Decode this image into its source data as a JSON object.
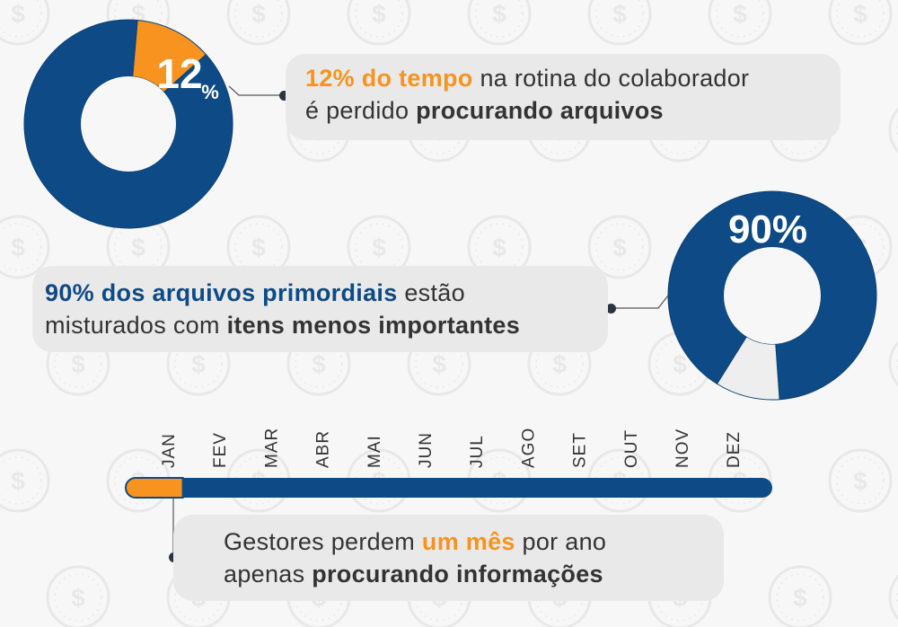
{
  "colors": {
    "navy": "#0e4a86",
    "orange": "#f7931e",
    "light_slice": "#eeeeee",
    "callout_bg": "#e9e9e9",
    "text": "#333333",
    "background": "#f7f7f7"
  },
  "background_icon": "compass-dollar-watermark-icon",
  "chart_data": [
    {
      "type": "pie",
      "variant": "donut",
      "slices": [
        {
          "label": "12%",
          "value": 12,
          "color": "#f7931e"
        },
        {
          "value": 88,
          "color": "#0e4a86"
        }
      ],
      "label_main": "12",
      "label_unit": "%"
    },
    {
      "type": "pie",
      "variant": "donut",
      "slices": [
        {
          "label": "90%",
          "value": 90,
          "color": "#0e4a86"
        },
        {
          "value": 10,
          "color": "#eeeeee"
        }
      ],
      "label_main": "90%"
    },
    {
      "type": "bar",
      "variant": "timeline-progress",
      "categories": [
        "JAN",
        "FEV",
        "MAR",
        "ABR",
        "MAI",
        "JUN",
        "JUL",
        "AGO",
        "SET",
        "OUT",
        "NOV",
        "DEZ"
      ],
      "highlighted_months": 1,
      "total_months": 12
    }
  ],
  "callouts": {
    "c1": {
      "line1_highlight": "12% do tempo",
      "line1_rest": " na rotina do colaborador",
      "line2_plain": "é perdido ",
      "line2_bold": "procurando arquivos"
    },
    "c2": {
      "line1_highlight": "90% dos arquivos primordiais",
      "line1_rest": " estão",
      "line2_plain": "misturados com ",
      "line2_bold": "itens menos importantes"
    },
    "c3": {
      "line1_plain": "Gestores perdem ",
      "line1_highlight": "um mês",
      "line1_rest": " por ano",
      "line2_plain": "apenas ",
      "line2_bold": "procurando informações"
    }
  }
}
